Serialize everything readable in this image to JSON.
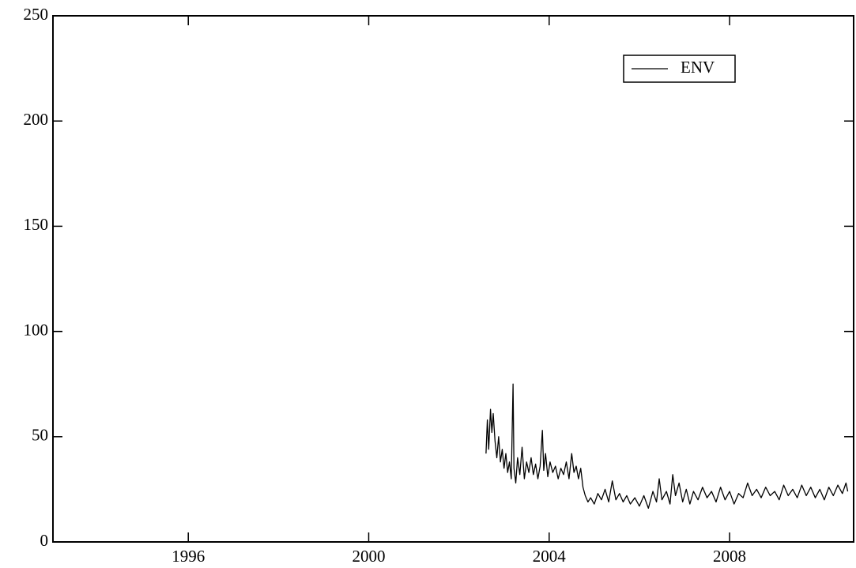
{
  "chart_data": {
    "type": "line",
    "x": [
      2002.6,
      2002.63,
      2002.66,
      2002.7,
      2002.73,
      2002.76,
      2002.8,
      2002.84,
      2002.88,
      2002.92,
      2002.96,
      2003.0,
      2003.04,
      2003.08,
      2003.12,
      2003.16,
      2003.2,
      2003.22,
      2003.26,
      2003.3,
      2003.35,
      2003.4,
      2003.45,
      2003.5,
      2003.55,
      2003.6,
      2003.65,
      2003.7,
      2003.75,
      2003.8,
      2003.85,
      2003.88,
      2003.92,
      2003.97,
      2004.02,
      2004.08,
      2004.14,
      2004.2,
      2004.26,
      2004.32,
      2004.38,
      2004.44,
      2004.5,
      2004.55,
      2004.6,
      2004.65,
      2004.7,
      2004.75,
      2004.8,
      2004.86,
      2004.92,
      2005.0,
      2005.08,
      2005.16,
      2005.24,
      2005.32,
      2005.4,
      2005.48,
      2005.56,
      2005.64,
      2005.72,
      2005.8,
      2005.9,
      2006.0,
      2006.1,
      2006.2,
      2006.3,
      2006.38,
      2006.44,
      2006.5,
      2006.6,
      2006.68,
      2006.74,
      2006.8,
      2006.88,
      2006.96,
      2007.04,
      2007.12,
      2007.2,
      2007.3,
      2007.4,
      2007.5,
      2007.6,
      2007.7,
      2007.8,
      2007.9,
      2008.0,
      2008.1,
      2008.2,
      2008.3,
      2008.4,
      2008.5,
      2008.6,
      2008.7,
      2008.8,
      2008.9,
      2009.0,
      2009.1,
      2009.2,
      2009.3,
      2009.4,
      2009.5,
      2009.6,
      2009.7,
      2009.8,
      2009.9,
      2010.0,
      2010.1,
      2010.2,
      2010.3,
      2010.4,
      2010.5,
      2010.58,
      2010.62
    ],
    "series": [
      {
        "name": "ENV",
        "color": "#000000",
        "values": [
          42,
          58,
          44,
          63,
          52,
          61,
          48,
          40,
          50,
          38,
          44,
          35,
          42,
          33,
          38,
          30,
          75,
          35,
          28,
          40,
          32,
          45,
          30,
          38,
          33,
          40,
          32,
          37,
          30,
          36,
          53,
          34,
          42,
          31,
          38,
          33,
          36,
          30,
          35,
          32,
          38,
          30,
          42,
          33,
          36,
          30,
          35,
          26,
          22,
          19,
          21,
          18,
          23,
          20,
          25,
          19,
          29,
          20,
          23,
          19,
          22,
          18,
          21,
          17,
          22,
          16,
          24,
          19,
          30,
          20,
          24,
          18,
          32,
          22,
          28,
          19,
          25,
          18,
          24,
          20,
          26,
          21,
          24,
          19,
          26,
          20,
          24,
          18,
          23,
          21,
          28,
          22,
          25,
          21,
          26,
          22,
          24,
          20,
          27,
          22,
          25,
          21,
          27,
          22,
          26,
          21,
          25,
          20,
          26,
          22,
          27,
          23,
          28,
          24
        ]
      }
    ],
    "xlim": [
      1993,
      2010.75
    ],
    "xticks": [
      1996,
      2000,
      2004,
      2008
    ],
    "ylim": [
      0,
      250
    ],
    "yticks": [
      0,
      50,
      100,
      150,
      200,
      250
    ],
    "legend": "upper right",
    "grid": false
  }
}
